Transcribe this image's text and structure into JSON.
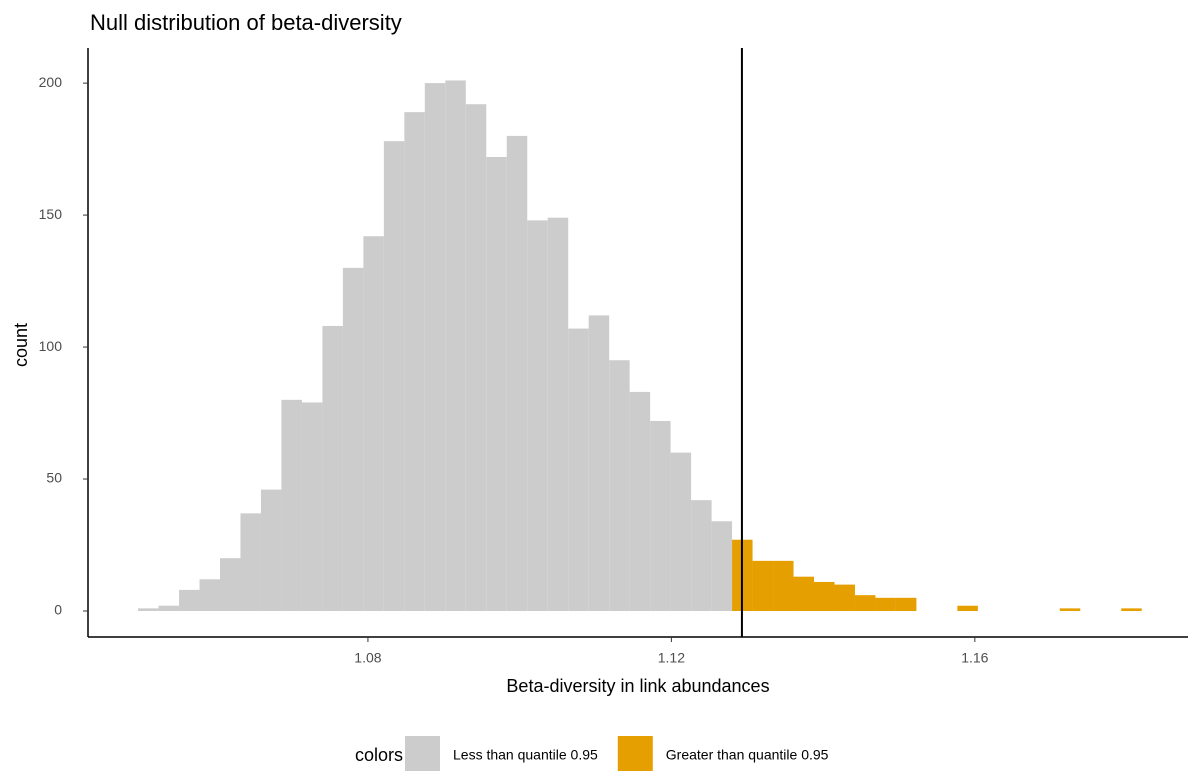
{
  "chart_data": {
    "type": "histogram",
    "title": "Null distribution of beta-diversity",
    "x_label": "Beta-diversity in link abundances",
    "y_label": "count",
    "legend_title": "colors",
    "bins": [
      1.0497,
      1.0524,
      1.0551,
      1.0578,
      1.0605,
      1.0632,
      1.0659,
      1.0686,
      1.0713,
      1.074,
      1.0767,
      1.0794,
      1.0821,
      1.0848,
      1.0875,
      1.0902,
      1.0929,
      1.0956,
      1.0983,
      1.101,
      1.1037,
      1.1064,
      1.1091,
      1.1118,
      1.1145,
      1.1172,
      1.1199,
      1.1226,
      1.1253,
      1.128,
      1.1307,
      1.1334,
      1.1361,
      1.1388,
      1.1415,
      1.1442,
      1.1469,
      1.1496,
      1.1523,
      1.155,
      1.1577,
      1.1604,
      1.1631,
      1.1658,
      1.1685,
      1.1712,
      1.1739,
      1.1766,
      1.1793,
      1.182
    ],
    "series": [
      {
        "name": "Less than quantile 0.95",
        "color": "#cccccc",
        "values": [
          1,
          2,
          8,
          12,
          20,
          37,
          46,
          80,
          79,
          108,
          130,
          142,
          178,
          189,
          200,
          201,
          192,
          172,
          180,
          148,
          149,
          107,
          112,
          95,
          83,
          72,
          60,
          42,
          34,
          null,
          null,
          null,
          null,
          null,
          null,
          null,
          null,
          null,
          null,
          null,
          null,
          null,
          null,
          null,
          null,
          null,
          null,
          null,
          null
        ]
      },
      {
        "name": "Greater than quantile 0.95",
        "color": "#e69f00",
        "values": [
          null,
          null,
          null,
          null,
          null,
          null,
          null,
          null,
          null,
          null,
          null,
          null,
          null,
          null,
          null,
          null,
          null,
          null,
          null,
          null,
          null,
          null,
          null,
          null,
          null,
          null,
          null,
          null,
          null,
          27,
          19,
          19,
          13,
          11,
          10,
          6,
          5,
          5,
          0,
          0,
          2,
          0,
          0,
          0,
          0,
          1,
          0,
          0,
          1
        ]
      }
    ],
    "vline": 1.1293,
    "xlim": [
      1.0431,
      1.1881
    ],
    "xticks": [
      1.08,
      1.12,
      1.16
    ],
    "ylim": [
      -9.85,
      213.3
    ],
    "yticks": [
      0,
      50,
      100,
      150,
      200
    ],
    "grid": false,
    "legend_position": "bottom"
  }
}
